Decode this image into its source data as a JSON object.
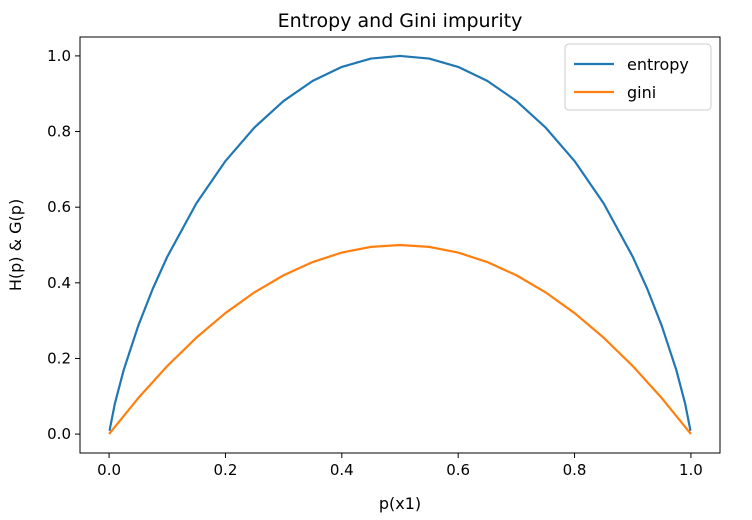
{
  "chart_data": {
    "type": "line",
    "title": "Entropy and Gini impurity",
    "xlabel": "p(x1)",
    "ylabel": "H(p) & G(p)",
    "xlim": [
      -0.05,
      1.05
    ],
    "ylim": [
      -0.05,
      1.05
    ],
    "xticks": [
      0.0,
      0.2,
      0.4,
      0.6,
      0.8,
      1.0
    ],
    "xtick_labels": [
      "0.0",
      "0.2",
      "0.4",
      "0.6",
      "0.8",
      "1.0"
    ],
    "yticks": [
      0.0,
      0.2,
      0.4,
      0.6,
      0.8,
      1.0
    ],
    "ytick_labels": [
      "0.0",
      "0.2",
      "0.4",
      "0.6",
      "0.8",
      "1.0"
    ],
    "grid": false,
    "legend_position": "upper-right",
    "series": [
      {
        "name": "entropy",
        "color": "#1f77b4",
        "x": [
          0.001,
          0.01,
          0.025,
          0.05,
          0.075,
          0.1,
          0.15,
          0.2,
          0.25,
          0.3,
          0.35,
          0.4,
          0.45,
          0.5,
          0.55,
          0.6,
          0.65,
          0.7,
          0.75,
          0.8,
          0.85,
          0.9,
          0.925,
          0.95,
          0.975,
          0.99,
          0.999
        ],
        "y": [
          0.011,
          0.081,
          0.169,
          0.286,
          0.384,
          0.469,
          0.61,
          0.722,
          0.811,
          0.881,
          0.934,
          0.971,
          0.993,
          1.0,
          0.993,
          0.971,
          0.934,
          0.881,
          0.811,
          0.722,
          0.61,
          0.469,
          0.384,
          0.286,
          0.169,
          0.081,
          0.011
        ]
      },
      {
        "name": "gini",
        "color": "#ff7f0e",
        "x": [
          0.001,
          0.05,
          0.1,
          0.15,
          0.2,
          0.25,
          0.3,
          0.35,
          0.4,
          0.45,
          0.5,
          0.55,
          0.6,
          0.65,
          0.7,
          0.75,
          0.8,
          0.85,
          0.9,
          0.95,
          0.999
        ],
        "y": [
          0.002,
          0.095,
          0.18,
          0.255,
          0.32,
          0.375,
          0.42,
          0.455,
          0.48,
          0.495,
          0.5,
          0.495,
          0.48,
          0.455,
          0.42,
          0.375,
          0.32,
          0.255,
          0.18,
          0.095,
          0.002
        ]
      }
    ]
  }
}
